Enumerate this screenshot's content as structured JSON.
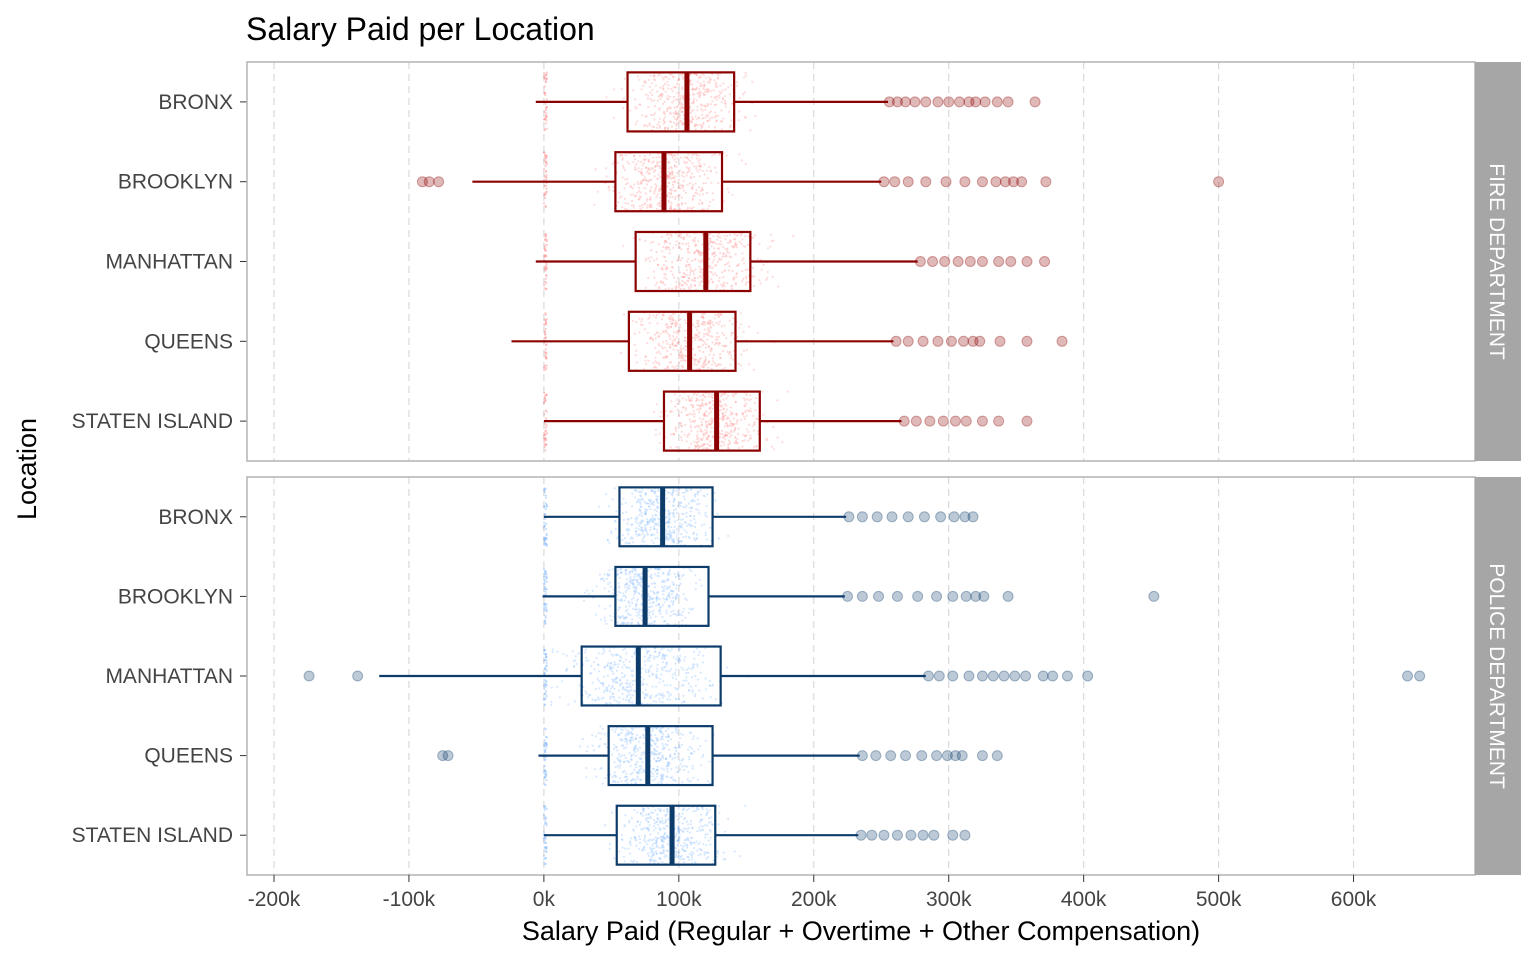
{
  "chart_data": {
    "type": "boxplot",
    "title": "Salary Paid per Location",
    "xlabel": "Salary Paid (Regular + Overtime + Other Compensation)",
    "ylabel": "Location",
    "xlim": [
      -220000,
      690000
    ],
    "x_ticks": [
      -200000,
      -100000,
      0,
      100000,
      200000,
      300000,
      400000,
      500000,
      600000
    ],
    "x_tick_labels": [
      "-200k",
      "-100k",
      "0k",
      "100k",
      "200k",
      "300k",
      "400k",
      "500k",
      "600k"
    ],
    "grid": "vertical dashed",
    "facets": [
      {
        "name": "FIRE DEPARTMENT",
        "colors": {
          "box": "#8b0000",
          "jitter": "#ff3030",
          "outlier": "#8b0000"
        },
        "groups": [
          {
            "location": "BRONX",
            "whisker_low": -6000,
            "q1": 62000,
            "median": 106000,
            "q3": 141000,
            "whisker_high": 255000,
            "outliers": [
              256000,
              262000,
              268000,
              275000,
              283000,
              292000,
              300000,
              308000,
              315000,
              320000,
              327000,
              336000,
              344000,
              364000
            ]
          },
          {
            "location": "BROOKLYN",
            "whisker_low": -53000,
            "q1": 53000,
            "median": 89000,
            "q3": 132000,
            "whisker_high": 250000,
            "outliers": [
              -90000,
              -85000,
              -78000,
              252000,
              260000,
              270000,
              283000,
              298000,
              312000,
              325000,
              335000,
              342000,
              348000,
              354000,
              372000,
              500000
            ]
          },
          {
            "location": "MANHATTAN",
            "whisker_low": -6000,
            "q1": 68000,
            "median": 120000,
            "q3": 153000,
            "whisker_high": 277000,
            "outliers": [
              279000,
              288000,
              297000,
              307000,
              316000,
              325000,
              337000,
              346000,
              358000,
              371000
            ]
          },
          {
            "location": "QUEENS",
            "whisker_low": -24000,
            "q1": 63000,
            "median": 108000,
            "q3": 142000,
            "whisker_high": 259000,
            "outliers": [
              261000,
              270000,
              281000,
              292000,
              302000,
              311000,
              318000,
              323000,
              338000,
              358000,
              384000
            ]
          },
          {
            "location": "STATEN ISLAND",
            "whisker_low": 0,
            "q1": 89000,
            "median": 128000,
            "q3": 160000,
            "whisker_high": 265000,
            "outliers": [
              267000,
              276000,
              286000,
              296000,
              305000,
              313000,
              325000,
              337000,
              358000
            ]
          }
        ]
      },
      {
        "name": "POLICE DEPARTMENT",
        "colors": {
          "box": "#0d3c6b",
          "jitter": "#1a7dff",
          "outlier": "#0d3c6b"
        },
        "groups": [
          {
            "location": "BRONX",
            "whisker_low": 0,
            "q1": 56000,
            "median": 88000,
            "q3": 125000,
            "whisker_high": 224000,
            "outliers": [
              226000,
              236000,
              247000,
              258000,
              270000,
              282000,
              294000,
              304000,
              312000,
              318000
            ]
          },
          {
            "location": "BROOKLYN",
            "whisker_low": -1000,
            "q1": 53000,
            "median": 75000,
            "q3": 122000,
            "whisker_high": 223000,
            "outliers": [
              225000,
              236000,
              248000,
              262000,
              277000,
              291000,
              303000,
              313000,
              320000,
              326000,
              344000,
              452000
            ]
          },
          {
            "location": "MANHATTAN",
            "whisker_low": -122000,
            "q1": 28000,
            "median": 70000,
            "q3": 131000,
            "whisker_high": 283000,
            "outliers": [
              -174000,
              -138000,
              285000,
              293000,
              303000,
              315000,
              325000,
              333000,
              341000,
              349000,
              357000,
              370000,
              377000,
              388000,
              403000,
              640000,
              649000
            ]
          },
          {
            "location": "QUEENS",
            "whisker_low": -4000,
            "q1": 48000,
            "median": 77000,
            "q3": 125000,
            "whisker_high": 234000,
            "outliers": [
              -75000,
              -71000,
              236000,
              246000,
              257000,
              268000,
              280000,
              291000,
              299000,
              305000,
              310000,
              325000,
              336000
            ]
          },
          {
            "location": "STATEN ISLAND",
            "whisker_low": 0,
            "q1": 54000,
            "median": 95000,
            "q3": 127000,
            "whisker_high": 233000,
            "outliers": [
              235000,
              243000,
              252000,
              262000,
              272000,
              281000,
              289000,
              303000,
              312000
            ]
          }
        ]
      }
    ]
  }
}
